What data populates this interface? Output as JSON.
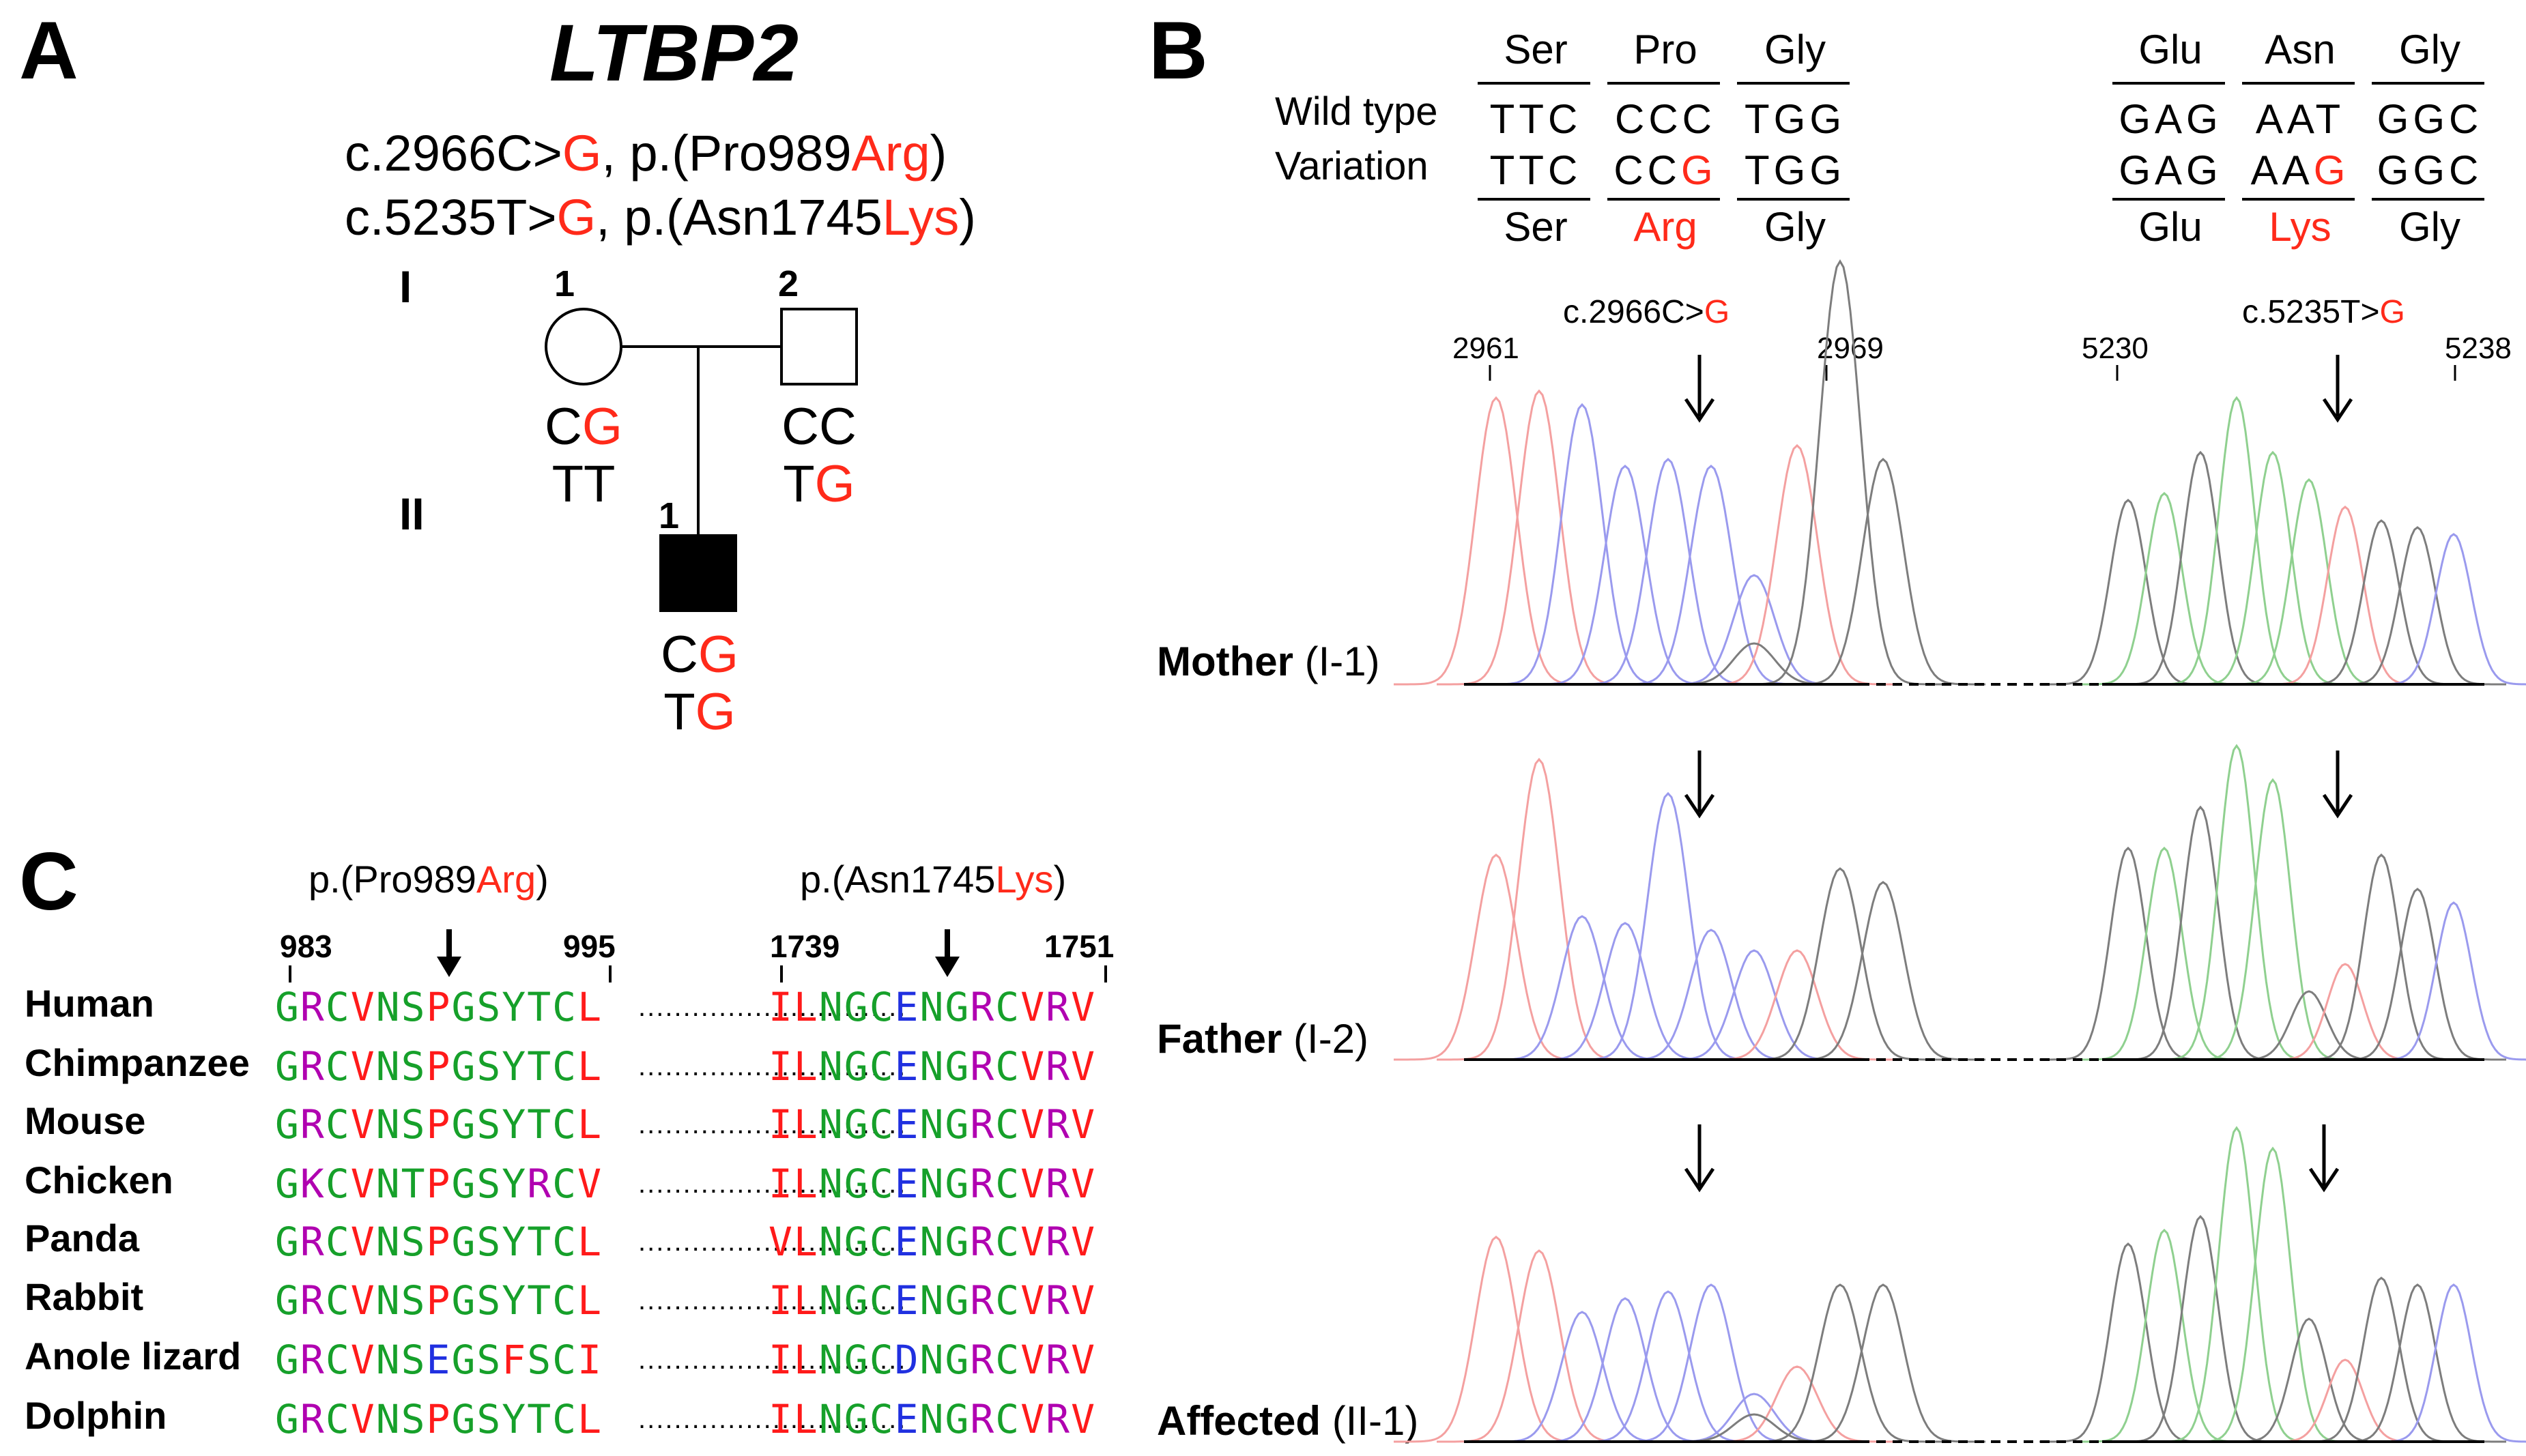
{
  "panel_a": {
    "label": "A",
    "gene": "LTBP2",
    "mutation1": {
      "cdna_prefix": "c.2966C>",
      "cdna_alt": "G",
      "sep": ", p.(Pro989",
      "protein_alt": "Arg",
      "close": ")"
    },
    "mutation2": {
      "cdna_prefix": "c.5235T>",
      "cdna_alt": "G",
      "sep": ", p.(Asn1745",
      "protein_alt": "Lys",
      "close": ")"
    },
    "generation1": "I",
    "generation2": "II",
    "mother_num": "1",
    "father_num": "2",
    "child_num": "1",
    "mother_geno1": {
      "a": "C",
      "b": "G"
    },
    "mother_geno2": "TT",
    "father_geno1": "CC",
    "father_geno2": {
      "a": "T",
      "b": "G"
    },
    "child_geno1": {
      "a": "C",
      "b": "G"
    },
    "child_geno2": {
      "a": "T",
      "b": "G"
    }
  },
  "panel_b": {
    "label": "B",
    "wild_type_label": "Wild type",
    "variation_label": "Variation",
    "left_top_codons": [
      "Ser",
      "Pro",
      "Gly"
    ],
    "left_wt_seq": [
      "TTC",
      "CCC",
      "TGG"
    ],
    "left_var_seq": [
      {
        "a": "TTC"
      },
      {
        "a": "CC",
        "b": "G"
      },
      {
        "a": "TGG"
      }
    ],
    "left_bottom_codons": [
      {
        "text": "Ser"
      },
      {
        "text": "Arg",
        "red": true
      },
      {
        "text": "Gly"
      }
    ],
    "right_top_codons": [
      "Glu",
      "Asn",
      "Gly"
    ],
    "right_wt_seq": [
      "GAG",
      "AAT",
      "GGC"
    ],
    "right_var_seq": [
      {
        "a": "GAG"
      },
      {
        "a": "AA",
        "b": "G"
      },
      {
        "a": "GGC"
      }
    ],
    "right_bottom_codons": [
      {
        "text": "Glu"
      },
      {
        "text": "Lys",
        "red": true
      },
      {
        "text": "Gly"
      }
    ],
    "left_marker": {
      "prefix": "c.2966C>",
      "alt": "G"
    },
    "right_marker": {
      "prefix": "c.5235T>",
      "alt": "G"
    },
    "pos_2961": "2961",
    "pos_2969": "2969",
    "pos_5230": "5230",
    "pos_5238": "5238",
    "traces": [
      {
        "name": "Mother",
        "id": "(I-1)"
      },
      {
        "name": "Father",
        "id": "(I-2)"
      },
      {
        "name": "Affected",
        "id": "(II-1)"
      }
    ]
  },
  "panel_c": {
    "label": "C",
    "left_variant": {
      "prefix": "p.(Pro989",
      "alt": "Arg",
      "close": ")"
    },
    "right_variant": {
      "prefix": "p.(Asn1745",
      "alt": "Lys",
      "close": ")"
    },
    "pos_983": "983",
    "pos_995": "995",
    "pos_1739": "1739",
    "pos_1751": "1751",
    "dots": "..............................",
    "species": [
      {
        "name": "Human",
        "left": "GRCVNSPGSYTCL",
        "right": "ILNGCENGRCVRV"
      },
      {
        "name": "Chimpanzee",
        "left": "GRCVNSPGSYTCL",
        "right": "ILNGCENGRCVRV"
      },
      {
        "name": "Mouse",
        "left": "GRCVNSPGSYTCL",
        "right": "ILNGCENGRCVRV"
      },
      {
        "name": "Chicken",
        "left": "GKCVNTPGSYRCV",
        "right": "ILNGCENGRCVRV"
      },
      {
        "name": "Panda",
        "left": "GRCVNSPGSYTCL",
        "right": "VLNGCENGRCVRV"
      },
      {
        "name": "Rabbit",
        "left": "GRCVNSPGSYTCL",
        "right": "ILNGCENGRCVRV"
      },
      {
        "name": "Anole lizard",
        "left": "GRCVNSEGSFSCI",
        "right": "ILNGCDNGRCVRV"
      },
      {
        "name": "Dolphin",
        "left": "GRCVNSPGSYTCL",
        "right": "ILNGCENGRCVRV"
      }
    ]
  }
}
